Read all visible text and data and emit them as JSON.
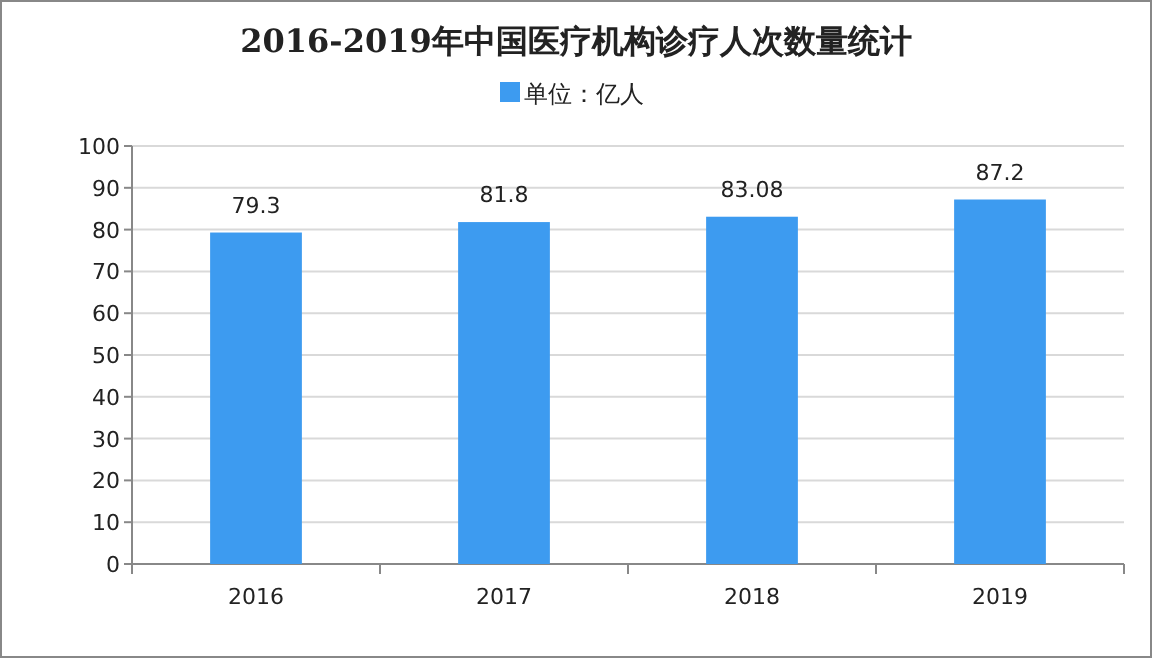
{
  "chart_data": {
    "type": "bar",
    "title": "2016-2019年中国医疗机构诊疗人次数量统计",
    "categories": [
      "2016",
      "2017",
      "2018",
      "2019"
    ],
    "series": [
      {
        "name": "单位：亿人",
        "color": "#3d9bf0",
        "values": [
          79.3,
          81.8,
          83.08,
          87.2
        ]
      }
    ],
    "ylim": [
      0,
      100
    ],
    "yticks": [
      0,
      10,
      20,
      30,
      40,
      50,
      60,
      70,
      80,
      90,
      100
    ],
    "grid": "y",
    "legend": "top",
    "data_labels": true
  }
}
